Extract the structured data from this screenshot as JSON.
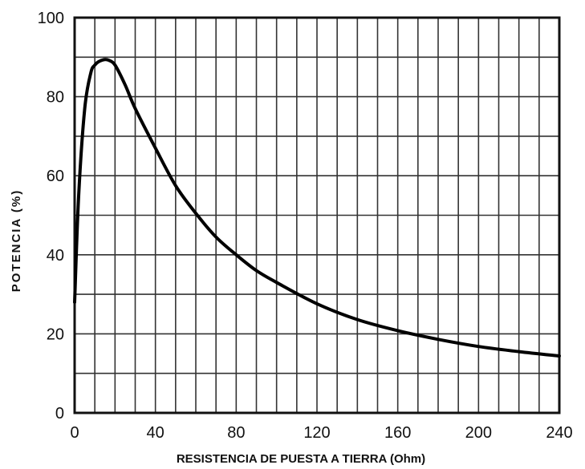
{
  "chart_data": {
    "type": "line",
    "title": "",
    "xlabel": "RESISTENCIA DE PUESTA A TIERRA (Ohm)",
    "ylabel": "POTENCIA (%)",
    "xlim": [
      0,
      240
    ],
    "ylim": [
      0,
      100
    ],
    "x_ticks": [
      "0",
      "40",
      "80",
      "120",
      "160",
      "200",
      "240"
    ],
    "y_ticks": [
      "0",
      "20",
      "40",
      "60",
      "80",
      "100"
    ],
    "grid": true,
    "line_color": "#000000",
    "series": [
      {
        "x": [
          0,
          2,
          5,
          8,
          10,
          12,
          15,
          17,
          20,
          25,
          30,
          40,
          50,
          60,
          70,
          80,
          90,
          100,
          120,
          140,
          160,
          180,
          200,
          220,
          240
        ],
        "y": [
          28,
          55,
          77,
          86,
          88,
          88.9,
          89.4,
          89.2,
          88,
          83,
          77,
          67,
          57.5,
          50.5,
          44.5,
          40,
          36,
          33,
          27.6,
          23.6,
          20.8,
          18.6,
          16.8,
          15.5,
          14.4
        ]
      }
    ]
  }
}
